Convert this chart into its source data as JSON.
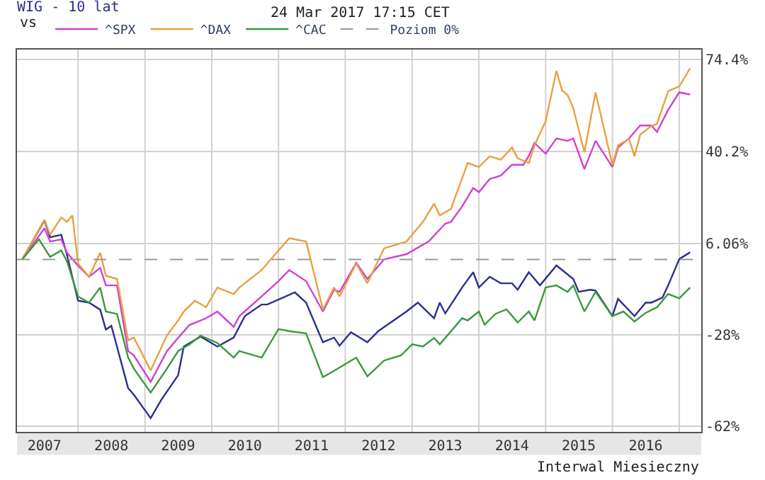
{
  "chart_data": {
    "type": "line",
    "title": "WIG - 10 lat",
    "legend_title": "vs",
    "annotations": [
      "24 Mar 2017 17:15 CET",
      "Interwal Miesieczny"
    ],
    "xlim": [
      "2007-02",
      "2017-05"
    ],
    "xticks": [
      {
        "value": "2007-07",
        "label": "2007"
      },
      {
        "value": "2008-01",
        "label": null
      },
      {
        "value": "2008-07",
        "label": "2008"
      },
      {
        "value": "2009-01",
        "label": null
      },
      {
        "value": "2009-07",
        "label": "2009"
      },
      {
        "value": "2010-01",
        "label": null
      },
      {
        "value": "2010-07",
        "label": "2010"
      },
      {
        "value": "2011-01",
        "label": null
      },
      {
        "value": "2011-07",
        "label": "2011"
      },
      {
        "value": "2012-01",
        "label": null
      },
      {
        "value": "2012-07",
        "label": "2012"
      },
      {
        "value": "2013-01",
        "label": null
      },
      {
        "value": "2013-07",
        "label": "2013"
      },
      {
        "value": "2014-01",
        "label": null
      },
      {
        "value": "2014-07",
        "label": "2014"
      },
      {
        "value": "2015-01",
        "label": null
      },
      {
        "value": "2015-07",
        "label": "2015"
      },
      {
        "value": "2016-01",
        "label": null
      },
      {
        "value": "2016-07",
        "label": "2016"
      },
      {
        "value": "2017-01",
        "label": null
      }
    ],
    "ylim": [
      -64,
      78
    ],
    "yticks": [
      {
        "value": 74.4,
        "label": "74.4%"
      },
      {
        "value": 40.2,
        "label": "40.2%"
      },
      {
        "value": 6.06,
        "label": "6.06%"
      },
      {
        "value": -28,
        "label": "-28%"
      },
      {
        "value": -62,
        "label": "-62%"
      }
    ],
    "grid": true,
    "legend": "top left",
    "ref_lines": [
      {
        "axis": "y",
        "value": 0,
        "label": "Poziom 0%",
        "color": "#999999",
        "line_style": "dashed"
      }
    ],
    "series": [
      {
        "color": "#2b2f8f",
        "x": [
          "2007-03",
          "2007-07",
          "2007-08",
          "2007-10",
          "2007-11",
          "2008-01",
          "2008-03",
          "2008-05",
          "2008-06",
          "2008-07",
          "2008-10",
          "2008-11",
          "2009-02",
          "2009-04",
          "2009-07",
          "2009-08",
          "2009-11",
          "2010-02",
          "2010-05",
          "2010-07",
          "2010-10",
          "2010-11",
          "2011-04",
          "2011-06",
          "2011-09",
          "2011-11",
          "2011-12",
          "2012-02",
          "2012-05",
          "2012-07",
          "2012-12",
          "2013-02",
          "2013-05",
          "2013-06",
          "2013-07",
          "2013-10",
          "2013-12",
          "2014-01",
          "2014-03",
          "2014-05",
          "2014-07",
          "2014-08",
          "2014-10",
          "2014-12",
          "2015-03",
          "2015-06",
          "2015-07",
          "2015-09",
          "2015-10",
          "2016-01",
          "2016-02",
          "2016-05",
          "2016-07",
          "2016-08",
          "2016-10",
          "2016-11",
          "2017-01",
          "2017-03"
        ],
        "values": [
          0,
          14.5,
          8.3,
          9.2,
          1.8,
          -15.3,
          -16,
          -18.6,
          -26,
          -24.6,
          -47.8,
          -50.2,
          -58.9,
          -52,
          -43,
          -32.3,
          -28.6,
          -32.3,
          -29,
          -21,
          -16.7,
          -16.7,
          -12.2,
          -16,
          -30.7,
          -29,
          -32,
          -27,
          -30.7,
          -26.5,
          -19.3,
          -16,
          -21.8,
          -16,
          -20,
          -10.4,
          -4.7,
          -10.4,
          -6.4,
          -8.8,
          -8.8,
          -11.2,
          -4.7,
          -9.6,
          -2.2,
          -7.2,
          -12,
          -11.2,
          -11.5,
          -21,
          -14.6,
          -21,
          -16,
          -16,
          -14.1,
          -9.6,
          0.2,
          2.7
        ]
      },
      {
        "name": "^SPX",
        "color": "#d040d0",
        "x": [
          "2007-03",
          "2007-07",
          "2007-08",
          "2007-10",
          "2007-11",
          "2008-01",
          "2008-03",
          "2008-05",
          "2008-06",
          "2008-08",
          "2008-10",
          "2008-11",
          "2009-02",
          "2009-05",
          "2009-07",
          "2009-09",
          "2009-12",
          "2010-02",
          "2010-05",
          "2010-06",
          "2010-10",
          "2011-01",
          "2011-03",
          "2011-06",
          "2011-09",
          "2011-11",
          "2011-12",
          "2012-03",
          "2012-05",
          "2012-08",
          "2012-12",
          "2013-04",
          "2013-07",
          "2013-08",
          "2013-10",
          "2013-12",
          "2014-01",
          "2014-03",
          "2014-05",
          "2014-07",
          "2014-09",
          "2014-10",
          "2014-11",
          "2015-01",
          "2015-03",
          "2015-05",
          "2015-06",
          "2015-08",
          "2015-10",
          "2016-01",
          "2016-02",
          "2016-04",
          "2016-06",
          "2016-08",
          "2016-09",
          "2016-11",
          "2017-01",
          "2017-03"
        ],
        "values": [
          0,
          11.6,
          6.7,
          7.5,
          2.6,
          -2.3,
          -6.4,
          -3.1,
          -9.6,
          -9.6,
          -34,
          -35.6,
          -45.4,
          -34,
          -29.1,
          -24.3,
          -21.8,
          -19.3,
          -25,
          -21,
          -13.7,
          -8,
          -3.9,
          -8,
          -19.3,
          -11.2,
          -12,
          -1.2,
          -7.2,
          0.1,
          2,
          6.7,
          13.3,
          14,
          19.7,
          26.6,
          25,
          29.9,
          31.2,
          35.2,
          35.2,
          38.5,
          43.3,
          39.3,
          45,
          44.1,
          45,
          33.6,
          44.1,
          34.4,
          41.6,
          45,
          49.8,
          49.8,
          47.4,
          55.6,
          62.1,
          61.3
        ]
      },
      {
        "name": "^DAX",
        "color": "#e8a040",
        "x": [
          "2007-03",
          "2007-07",
          "2007-08",
          "2007-10",
          "2007-11",
          "2007-12",
          "2008-01",
          "2008-03",
          "2008-05",
          "2008-06",
          "2008-08",
          "2008-10",
          "2008-11",
          "2009-02",
          "2009-05",
          "2009-07",
          "2009-08",
          "2009-10",
          "2009-12",
          "2010-02",
          "2010-05",
          "2010-06",
          "2010-10",
          "2011-01",
          "2011-03",
          "2011-06",
          "2011-09",
          "2011-11",
          "2011-12",
          "2012-03",
          "2012-05",
          "2012-08",
          "2012-12",
          "2013-03",
          "2013-05",
          "2013-06",
          "2013-08",
          "2013-11",
          "2014-01",
          "2014-03",
          "2014-05",
          "2014-07",
          "2014-08",
          "2014-10",
          "2014-11",
          "2015-01",
          "2015-03",
          "2015-04",
          "2015-05",
          "2015-06",
          "2015-08",
          "2015-10",
          "2016-01",
          "2016-02",
          "2016-04",
          "2016-05",
          "2016-06",
          "2016-08",
          "2016-09",
          "2016-11",
          "2017-01",
          "2017-03"
        ],
        "values": [
          0,
          14.8,
          9.2,
          15.6,
          14,
          16.4,
          -1.5,
          -6.4,
          2.5,
          -6,
          -7.2,
          -30,
          -29,
          -41.2,
          -28.2,
          -22.6,
          -19.3,
          -15.3,
          -17.7,
          -10.4,
          -12.8,
          -10.4,
          -3.9,
          3.4,
          7.9,
          6.7,
          -18.5,
          -10.4,
          -13.7,
          -1.5,
          -8.8,
          4.2,
          6.7,
          14,
          20.8,
          16.4,
          18.8,
          35.9,
          34.3,
          38.4,
          37.1,
          41.6,
          37.6,
          35.9,
          42.4,
          51.4,
          70.1,
          62.8,
          61.1,
          56.3,
          39.8,
          62.1,
          35.2,
          42.4,
          44.8,
          38.4,
          46.4,
          49.6,
          50.4,
          62.6,
          64.3,
          71.1
        ]
      },
      {
        "name": "^CAC",
        "color": "#3a9a3a",
        "x": [
          "2007-03",
          "2007-06",
          "2007-08",
          "2007-10",
          "2007-11",
          "2008-01",
          "2008-03",
          "2008-05",
          "2008-06",
          "2008-08",
          "2008-10",
          "2008-11",
          "2009-02",
          "2009-05",
          "2009-07",
          "2009-09",
          "2009-11",
          "2010-02",
          "2010-05",
          "2010-06",
          "2010-10",
          "2011-01",
          "2011-03",
          "2011-06",
          "2011-09",
          "2011-11",
          "2012-03",
          "2012-05",
          "2012-08",
          "2012-11",
          "2013-01",
          "2013-03",
          "2013-05",
          "2013-06",
          "2013-09",
          "2013-10",
          "2013-11",
          "2014-01",
          "2014-02",
          "2014-04",
          "2014-06",
          "2014-08",
          "2014-10",
          "2014-11",
          "2015-01",
          "2015-03",
          "2015-05",
          "2015-06",
          "2015-08",
          "2015-10",
          "2016-01",
          "2016-03",
          "2016-05",
          "2016-07",
          "2016-09",
          "2016-11",
          "2017-01",
          "2017-03"
        ],
        "values": [
          0,
          7.5,
          1,
          3.4,
          -0.6,
          -13.7,
          -16,
          -10.4,
          -19.3,
          -20.2,
          -36.4,
          -40.5,
          -49.4,
          -40.5,
          -34,
          -31.5,
          -28.3,
          -31,
          -36.4,
          -34,
          -36.4,
          -25.8,
          -26.6,
          -27.4,
          -43.7,
          -41.3,
          -36.4,
          -43.4,
          -37.5,
          -35.6,
          -31.5,
          -32.3,
          -29.1,
          -31.5,
          -24.2,
          -21.8,
          -22.6,
          -19.3,
          -24.2,
          -20.2,
          -18.5,
          -23.4,
          -19.3,
          -22.6,
          -10.4,
          -9.6,
          -12,
          -9.6,
          -19.3,
          -12,
          -21,
          -19.3,
          -23,
          -19.8,
          -17.7,
          -12.8,
          -14.4,
          -10.4
        ]
      }
    ]
  }
}
